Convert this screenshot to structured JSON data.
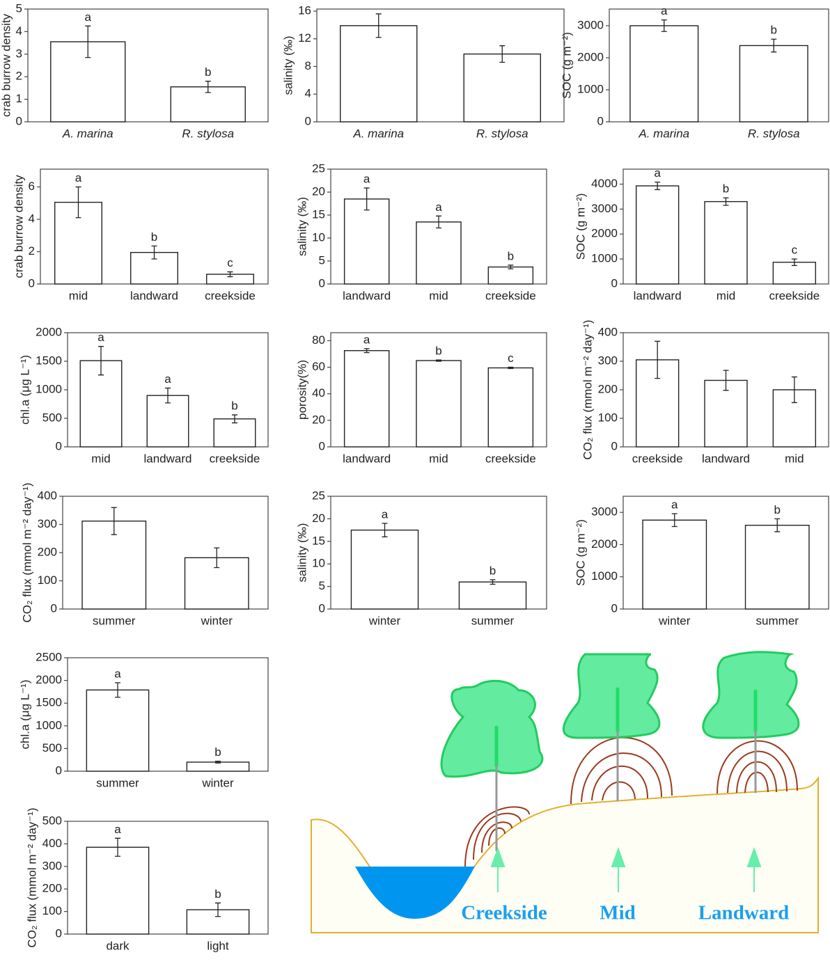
{
  "chart_data": [
    {
      "type": "bar",
      "ylabel": "crab burrow density",
      "categories": [
        "A. marina",
        "R. stylosa"
      ],
      "italic_categories": true,
      "values": [
        3.55,
        1.55
      ],
      "errors": [
        0.7,
        0.25
      ],
      "letters": [
        "a",
        "b"
      ],
      "ylim": [
        0,
        5
      ],
      "yticks": [
        0,
        1,
        2,
        3,
        4,
        5
      ]
    },
    {
      "type": "bar",
      "ylabel": "salinity (‰)",
      "categories": [
        "A. marina",
        "R. stylosa"
      ],
      "italic_categories": true,
      "values": [
        13.9,
        9.8
      ],
      "errors": [
        1.7,
        1.2
      ],
      "ylim": [
        0,
        16.3
      ],
      "yticks": [
        0,
        4,
        8,
        12,
        16
      ]
    },
    {
      "type": "bar",
      "ylabel": "SOC (g m⁻²)",
      "categories": [
        "A. marina",
        "R. stylosa"
      ],
      "italic_categories": true,
      "values": [
        3000,
        2380
      ],
      "errors": [
        180,
        200
      ],
      "letters": [
        "a",
        "b"
      ],
      "ylim": [
        0,
        3520
      ],
      "yticks": [
        0,
        1000,
        2000,
        3000
      ]
    },
    {
      "type": "bar",
      "ylabel": "crab burrow density",
      "categories": [
        "mid",
        "landward",
        "creekside"
      ],
      "values": [
        5.05,
        1.95,
        0.6
      ],
      "errors": [
        0.95,
        0.4,
        0.15
      ],
      "letters": [
        "a",
        "b",
        "c"
      ],
      "ylim": [
        0,
        7.1
      ],
      "yticks": [
        0,
        2,
        4,
        6
      ]
    },
    {
      "type": "bar",
      "ylabel": "salinity (‰)",
      "categories": [
        "landward",
        "mid",
        "creekside"
      ],
      "values": [
        18.5,
        13.5,
        3.7
      ],
      "errors": [
        2.4,
        1.3,
        0.4
      ],
      "letters": [
        "a",
        "a",
        "b"
      ],
      "ylim": [
        0,
        25
      ],
      "yticks": [
        0,
        5,
        10,
        15,
        20,
        25
      ]
    },
    {
      "type": "bar",
      "ylabel": "SOC (g m⁻²)",
      "categories": [
        "landward",
        "mid",
        "creekside"
      ],
      "values": [
        3930,
        3300,
        870
      ],
      "errors": [
        150,
        150,
        130
      ],
      "letters": [
        "a",
        "b",
        "c"
      ],
      "ylim": [
        0,
        4600
      ],
      "yticks": [
        0,
        1000,
        2000,
        3000,
        4000
      ]
    },
    {
      "type": "bar",
      "ylabel": "chl.a (μg L⁻¹)",
      "categories": [
        "mid",
        "landward",
        "creekside"
      ],
      "values": [
        1510,
        900,
        490
      ],
      "errors": [
        250,
        130,
        70
      ],
      "letters": [
        "a",
        "a",
        "b"
      ],
      "ylim": [
        0,
        2000
      ],
      "yticks": [
        0,
        500,
        1000,
        1500,
        2000
      ]
    },
    {
      "type": "bar",
      "ylabel": "porosity(%)",
      "categories": [
        "landward",
        "mid",
        "creekside"
      ],
      "values": [
        72.5,
        65,
        59.5
      ],
      "errors": [
        1.5,
        0.5,
        0.5
      ],
      "letters": [
        "a",
        "b",
        "c"
      ],
      "ylim": [
        0,
        86
      ],
      "yticks": [
        0,
        20,
        40,
        60,
        80
      ]
    },
    {
      "type": "bar",
      "ylabel": "CO₂ flux (mmol m⁻² day⁻¹)",
      "categories": [
        "creekside",
        "landward",
        "mid"
      ],
      "values": [
        305,
        233,
        200
      ],
      "errors": [
        65,
        35,
        45
      ],
      "ylim": [
        0,
        400
      ],
      "yticks": [
        0,
        100,
        200,
        300,
        400
      ]
    },
    {
      "type": "bar",
      "ylabel": "CO₂ flux (mmol m⁻² day⁻¹)",
      "categories": [
        "summer",
        "winter"
      ],
      "values": [
        312,
        182
      ],
      "errors": [
        48,
        35
      ],
      "ylim": [
        0,
        400
      ],
      "yticks": [
        0,
        100,
        200,
        300,
        400
      ]
    },
    {
      "type": "bar",
      "ylabel": "salinity (‰)",
      "categories": [
        "winter",
        "summer"
      ],
      "values": [
        17.5,
        6
      ],
      "errors": [
        1.5,
        0.5
      ],
      "letters": [
        "a",
        "b"
      ],
      "ylim": [
        0,
        25
      ],
      "yticks": [
        0,
        5,
        10,
        15,
        20,
        25
      ]
    },
    {
      "type": "bar",
      "ylabel": "SOC (g m⁻²)",
      "categories": [
        "winter",
        "summer"
      ],
      "values": [
        2760,
        2600
      ],
      "errors": [
        200,
        200
      ],
      "letters": [
        "a",
        "b"
      ],
      "ylim": [
        0,
        3500
      ],
      "yticks": [
        0,
        1000,
        2000,
        3000
      ]
    },
    {
      "type": "bar",
      "ylabel": "chl.a (μg L⁻¹)",
      "categories": [
        "summer",
        "winter"
      ],
      "values": [
        1790,
        200
      ],
      "errors": [
        160,
        20
      ],
      "letters": [
        "a",
        "b"
      ],
      "ylim": [
        0,
        2500
      ],
      "yticks": [
        0,
        500,
        1000,
        1500,
        2000,
        2500
      ]
    },
    {
      "type": "bar",
      "ylabel": "CO₂ flux (mmol m⁻² day⁻¹)",
      "categories": [
        "dark",
        "light"
      ],
      "values": [
        385,
        108
      ],
      "errors": [
        40,
        30
      ],
      "letters": [
        "a",
        "b"
      ],
      "ylim": [
        0,
        500
      ],
      "yticks": [
        0,
        100,
        200,
        300,
        400,
        500
      ]
    }
  ],
  "diagram": {
    "labels": [
      "Creekside",
      "Mid",
      "Landward"
    ]
  }
}
